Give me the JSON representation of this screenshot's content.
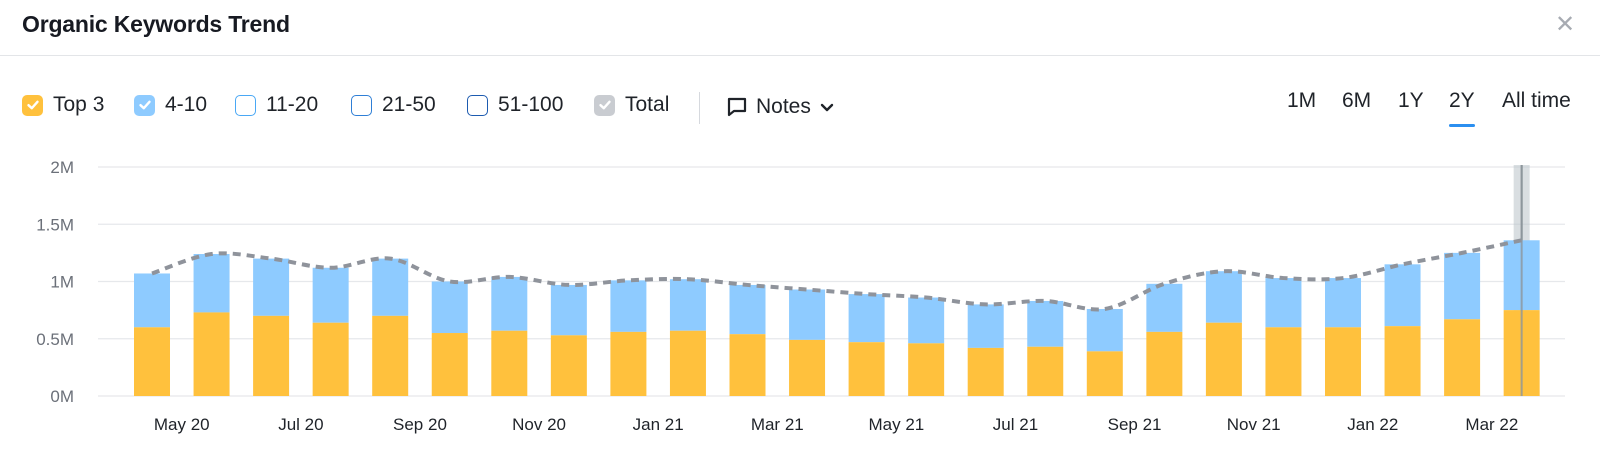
{
  "header": {
    "title": "Organic Keywords Trend",
    "close_icon": "close-icon"
  },
  "legend": [
    {
      "label": "Top 3",
      "checked": true,
      "color": "#ffc13d",
      "border": "#ffc13d"
    },
    {
      "label": "4-10",
      "checked": true,
      "color": "#8ecbff",
      "border": "#8ecbff"
    },
    {
      "label": "11-20",
      "checked": false,
      "color": "#ffffff",
      "border": "#4aa8f5"
    },
    {
      "label": "21-50",
      "checked": false,
      "color": "#ffffff",
      "border": "#2f7fd6"
    },
    {
      "label": "51-100",
      "checked": false,
      "color": "#ffffff",
      "border": "#1d5bb0"
    },
    {
      "label": "Total",
      "checked": true,
      "color": "#c9ccd1",
      "border": "#c9ccd1"
    }
  ],
  "notes": {
    "label": "Notes",
    "icon": "comment-icon",
    "chevron": "chevron-down-icon"
  },
  "range_tabs": [
    {
      "label": "1M",
      "active": false
    },
    {
      "label": "6M",
      "active": false
    },
    {
      "label": "1Y",
      "active": false
    },
    {
      "label": "2Y",
      "active": true
    },
    {
      "label": "All time",
      "active": false
    }
  ],
  "colors": {
    "top3": "#ffc13d",
    "pos4_10": "#8ecbff",
    "total_line": "#8f939b",
    "grid": "#e6e8eb",
    "accent": "#2b8ff0"
  },
  "chart_data": {
    "type": "bar",
    "stacked": true,
    "title": "",
    "xlabel": "",
    "ylabel": "",
    "ylim": [
      0,
      2000000
    ],
    "y_ticks": [
      {
        "value": 0,
        "label": "0M"
      },
      {
        "value": 500000,
        "label": "0.5M"
      },
      {
        "value": 1000000,
        "label": "1M"
      },
      {
        "value": 1500000,
        "label": "1.5M"
      },
      {
        "value": 2000000,
        "label": "2M"
      }
    ],
    "x_tick_labels": [
      {
        "index": 0.5,
        "label": "May 20"
      },
      {
        "index": 2.5,
        "label": "Jul 20"
      },
      {
        "index": 4.5,
        "label": "Sep 20"
      },
      {
        "index": 6.5,
        "label": "Nov 20"
      },
      {
        "index": 8.5,
        "label": "Jan 21"
      },
      {
        "index": 10.5,
        "label": "Mar 21"
      },
      {
        "index": 12.5,
        "label": "May 21"
      },
      {
        "index": 14.5,
        "label": "Jul 21"
      },
      {
        "index": 16.5,
        "label": "Sep 21"
      },
      {
        "index": 18.5,
        "label": "Nov 21"
      },
      {
        "index": 20.5,
        "label": "Jan 22"
      },
      {
        "index": 22.5,
        "label": "Mar 22"
      }
    ],
    "series": [
      {
        "name": "Top 3",
        "values": [
          600000,
          730000,
          700000,
          640000,
          700000,
          550000,
          570000,
          530000,
          560000,
          570000,
          540000,
          490000,
          470000,
          460000,
          420000,
          430000,
          390000,
          560000,
          640000,
          600000,
          600000,
          610000,
          670000,
          750000
        ]
      },
      {
        "name": "4-10",
        "values": [
          470000,
          510000,
          500000,
          480000,
          500000,
          450000,
          470000,
          440000,
          450000,
          450000,
          430000,
          440000,
          420000,
          400000,
          380000,
          400000,
          370000,
          420000,
          450000,
          430000,
          430000,
          540000,
          580000,
          610000
        ]
      },
      {
        "name": "Total",
        "values": [
          1070000,
          1240000,
          1200000,
          1120000,
          1200000,
          1000000,
          1040000,
          970000,
          1010000,
          1020000,
          970000,
          930000,
          890000,
          860000,
          800000,
          830000,
          760000,
          980000,
          1090000,
          1030000,
          1030000,
          1150000,
          1250000,
          1360000
        ]
      }
    ],
    "highlight_index": 23
  }
}
